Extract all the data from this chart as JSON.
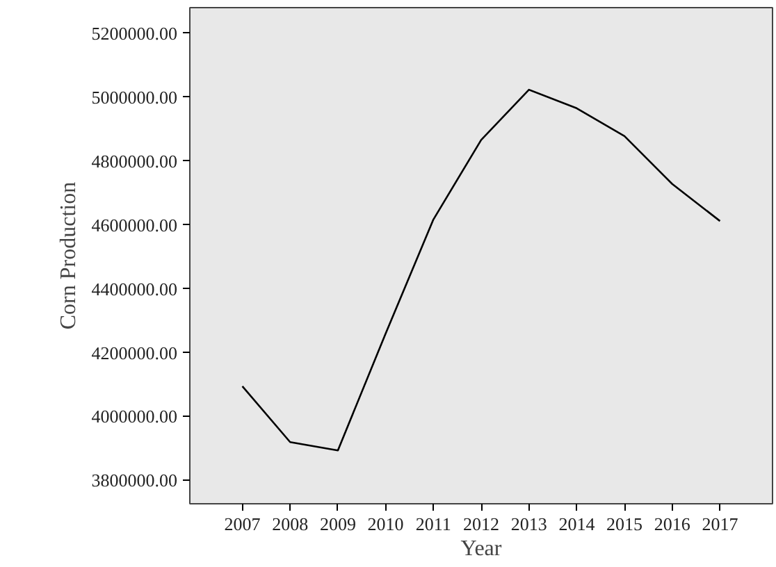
{
  "chart_data": {
    "type": "line",
    "xlabel": "Year",
    "ylabel": "Corn Production",
    "x": [
      2007,
      2008,
      2009,
      2010,
      2011,
      2012,
      2013,
      2014,
      2015,
      2016,
      2017
    ],
    "series": [
      {
        "color": "#000000",
        "values": [
          4095000,
          3920000,
          3894000,
          4260000,
          4617000,
          4866000,
          5023000,
          4965000,
          4878000,
          4728000,
          4612000
        ]
      }
    ],
    "xlim": [
      2005.9,
      2018.1
    ],
    "xticks": [
      2007,
      2008,
      2009,
      2010,
      2011,
      2012,
      2013,
      2014,
      2015,
      2016,
      2017
    ],
    "ylim": [
      3727000,
      5280000
    ],
    "yticks": [
      {
        "value": 3800000,
        "label": "3800000.00"
      },
      {
        "value": 4000000,
        "label": "4000000.00"
      },
      {
        "value": 4200000,
        "label": "4200000.00"
      },
      {
        "value": 4400000,
        "label": "4400000.00"
      },
      {
        "value": 4600000,
        "label": "4600000.00"
      },
      {
        "value": 4800000,
        "label": "4800000.00"
      },
      {
        "value": 5000000,
        "label": "5000000.00"
      },
      {
        "value": 5200000,
        "label": "5200000.00"
      }
    ],
    "grid": false,
    "marker": "none",
    "line_style": "solid"
  }
}
